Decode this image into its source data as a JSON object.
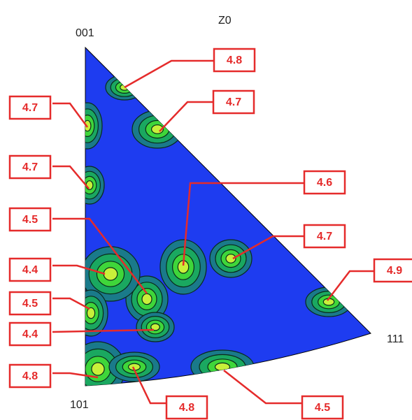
{
  "title": "Z0",
  "corners": {
    "top": "001",
    "right": "111",
    "bottom": "101"
  },
  "callouts": [
    "4.8",
    "4.7",
    "4.7",
    "4.7",
    "4.6",
    "4.5",
    "4.7",
    "4.4",
    "4.9",
    "4.5",
    "4.4",
    "4.8",
    "4.8",
    "4.5"
  ]
}
